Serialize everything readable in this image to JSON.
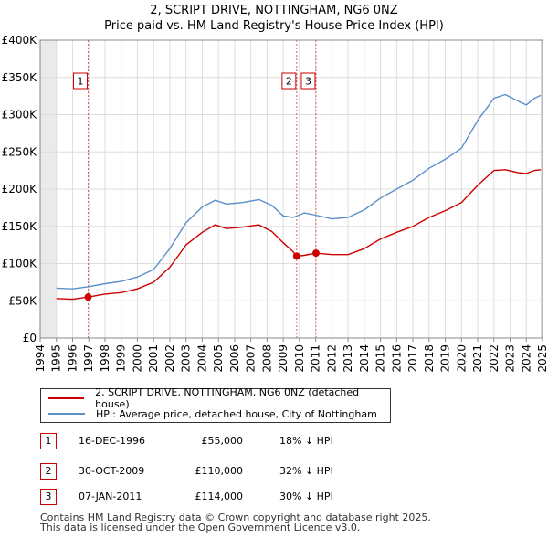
{
  "title_line1": "2, SCRIPT DRIVE, NOTTINGHAM, NG6 0NZ",
  "title_line2": "Price paid vs. HM Land Registry's House Price Index (HPI)",
  "chart_data": {
    "type": "line",
    "xlim": [
      1994,
      2025
    ],
    "ylim": [
      0,
      400000
    ],
    "y_ticks": [
      0,
      50000,
      100000,
      150000,
      200000,
      250000,
      300000,
      350000,
      400000
    ],
    "y_tick_labels": [
      "£0",
      "£50K",
      "£100K",
      "£150K",
      "£200K",
      "£250K",
      "£300K",
      "£350K",
      "£400K"
    ],
    "x_ticks": [
      1994,
      1995,
      1996,
      1997,
      1998,
      1999,
      2000,
      2001,
      2002,
      2003,
      2004,
      2005,
      2006,
      2007,
      2008,
      2009,
      2010,
      2011,
      2012,
      2013,
      2014,
      2015,
      2016,
      2017,
      2018,
      2019,
      2020,
      2021,
      2022,
      2023,
      2024,
      2025
    ],
    "data_start": 1995.0,
    "data_end": 2024.9,
    "grid": true,
    "series": [
      {
        "name": "2, SCRIPT DRIVE, NOTTINGHAM, NG6 0NZ (detached house)",
        "color": "#cc0000",
        "points": [
          [
            1995.0,
            53000
          ],
          [
            1996.0,
            52000
          ],
          [
            1996.96,
            55000
          ],
          [
            1998.0,
            59000
          ],
          [
            1999.0,
            61000
          ],
          [
            2000.0,
            66000
          ],
          [
            2001.0,
            75000
          ],
          [
            2002.0,
            95000
          ],
          [
            2003.0,
            125000
          ],
          [
            2004.0,
            142000
          ],
          [
            2004.8,
            152000
          ],
          [
            2005.5,
            147000
          ],
          [
            2006.5,
            149000
          ],
          [
            2007.5,
            152000
          ],
          [
            2008.3,
            143000
          ],
          [
            2009.0,
            128000
          ],
          [
            2009.6,
            116000
          ],
          [
            2009.83,
            110000
          ],
          [
            2010.3,
            111000
          ],
          [
            2011.02,
            114000
          ],
          [
            2012.0,
            112000
          ],
          [
            2013.0,
            112000
          ],
          [
            2014.0,
            120000
          ],
          [
            2015.0,
            133000
          ],
          [
            2016.0,
            142000
          ],
          [
            2017.0,
            150000
          ],
          [
            2018.0,
            162000
          ],
          [
            2019.0,
            171000
          ],
          [
            2020.0,
            182000
          ],
          [
            2021.0,
            205000
          ],
          [
            2022.0,
            225000
          ],
          [
            2022.7,
            226000
          ],
          [
            2023.5,
            222000
          ],
          [
            2024.0,
            221000
          ],
          [
            2024.5,
            225000
          ],
          [
            2024.9,
            226000
          ]
        ]
      },
      {
        "name": "HPI: Average price, detached house, City of Nottingham",
        "color": "#5b8fc9",
        "points": [
          [
            1995.0,
            67000
          ],
          [
            1996.0,
            66000
          ],
          [
            1997.0,
            69000
          ],
          [
            1998.0,
            73000
          ],
          [
            1999.0,
            76000
          ],
          [
            2000.0,
            82000
          ],
          [
            2001.0,
            92000
          ],
          [
            2002.0,
            120000
          ],
          [
            2003.0,
            155000
          ],
          [
            2004.0,
            176000
          ],
          [
            2004.8,
            185000
          ],
          [
            2005.5,
            180000
          ],
          [
            2006.5,
            182000
          ],
          [
            2007.5,
            186000
          ],
          [
            2008.3,
            178000
          ],
          [
            2009.0,
            164000
          ],
          [
            2009.6,
            162000
          ],
          [
            2010.3,
            168000
          ],
          [
            2011.0,
            165000
          ],
          [
            2012.0,
            160000
          ],
          [
            2013.0,
            162000
          ],
          [
            2014.0,
            172000
          ],
          [
            2015.0,
            188000
          ],
          [
            2016.0,
            200000
          ],
          [
            2017.0,
            212000
          ],
          [
            2018.0,
            228000
          ],
          [
            2019.0,
            240000
          ],
          [
            2020.0,
            255000
          ],
          [
            2021.0,
            292000
          ],
          [
            2022.0,
            322000
          ],
          [
            2022.7,
            327000
          ],
          [
            2023.5,
            318000
          ],
          [
            2024.0,
            313000
          ],
          [
            2024.5,
            322000
          ],
          [
            2024.9,
            326000
          ]
        ]
      }
    ],
    "sales": [
      {
        "label": "1",
        "x": 1996.96,
        "price": 55000
      },
      {
        "label": "2",
        "x": 2009.83,
        "price": 110000
      },
      {
        "label": "3",
        "x": 2011.02,
        "price": 114000
      }
    ]
  },
  "legend": {
    "property": "2, SCRIPT DRIVE, NOTTINGHAM, NG6 0NZ (detached house)",
    "hpi": "HPI: Average price, detached house, City of Nottingham"
  },
  "transactions": [
    {
      "num": "1",
      "date": "16-DEC-1996",
      "price": "£55,000",
      "hpi": "18% ↓ HPI"
    },
    {
      "num": "2",
      "date": "30-OCT-2009",
      "price": "£110,000",
      "hpi": "32% ↓ HPI"
    },
    {
      "num": "3",
      "date": "07-JAN-2011",
      "price": "£114,000",
      "hpi": "30% ↓ HPI"
    }
  ],
  "footer": {
    "line1": "Contains HM Land Registry data © Crown copyright and database right 2025.",
    "line2": "This data is licensed under the Open Government Licence v3.0."
  }
}
